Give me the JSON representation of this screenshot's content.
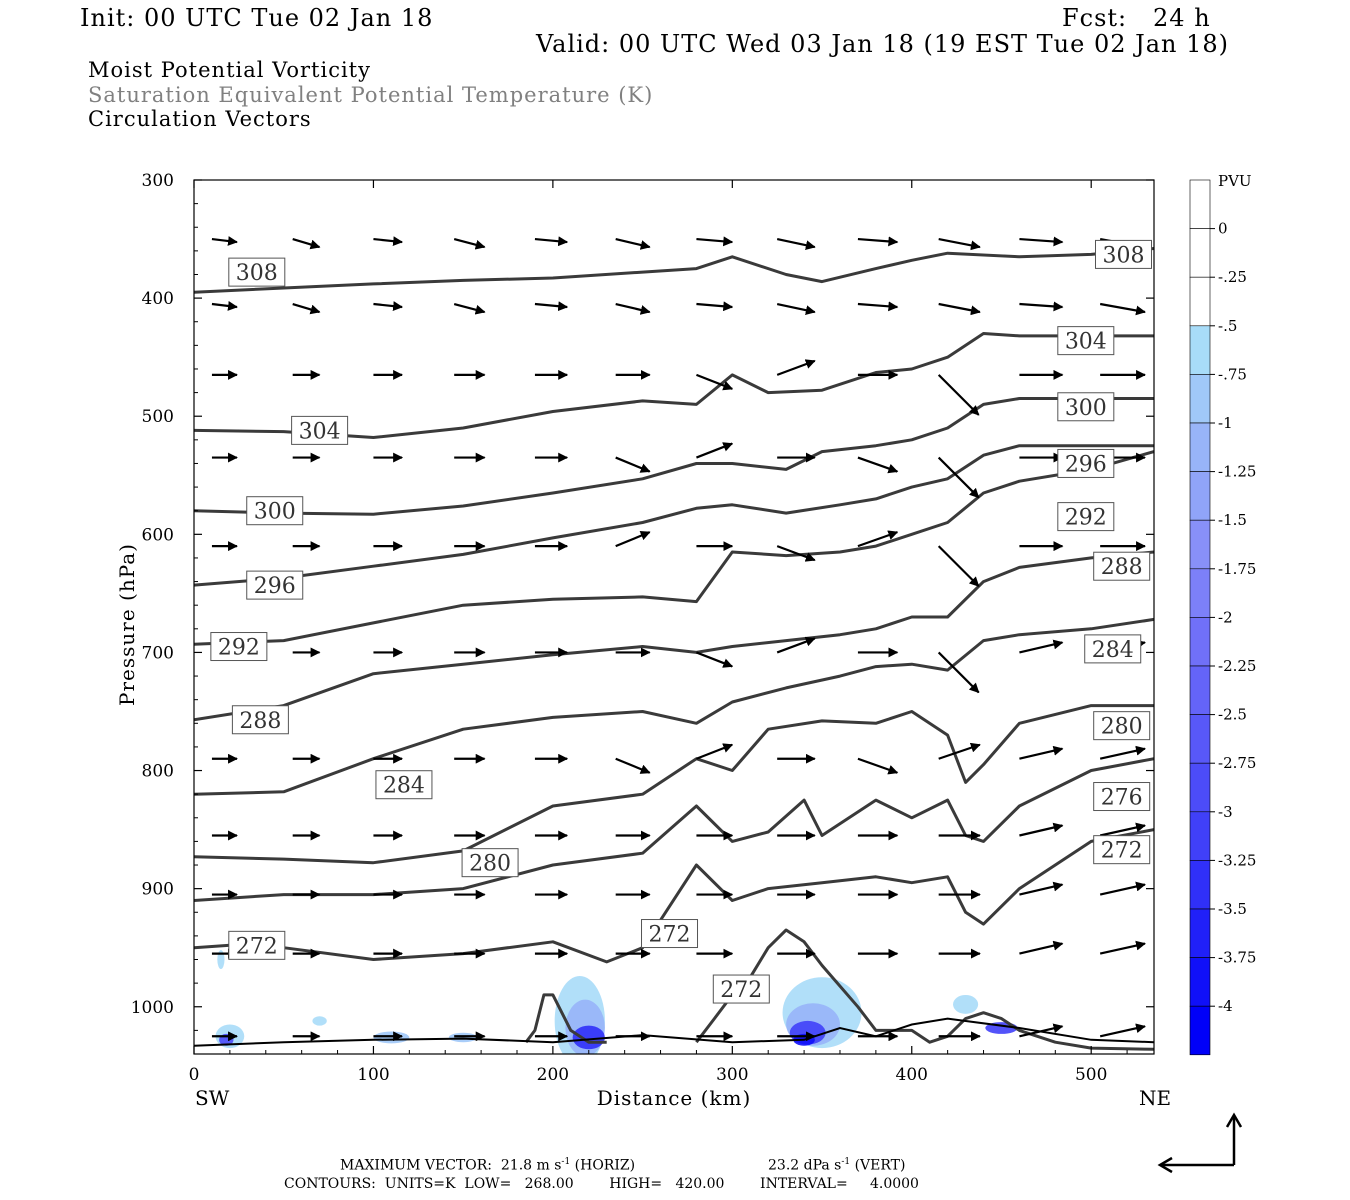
{
  "header": {
    "init": "Init: 00 UTC Tue 02 Jan 18",
    "fcst": "Fcst:   24 h",
    "valid": "Valid: 00 UTC Wed 03 Jan 18 (19 EST Tue 02 Jan 18)",
    "line1": "Moist Potential Vorticity",
    "line2": "Saturation Equivalent Potential Temperature (K)",
    "line3": "Circulation Vectors"
  },
  "axes": {
    "ylabel": "Pressure (hPa)",
    "xlabel": "Distance (km)",
    "left_end": "SW",
    "right_end": "NE"
  },
  "colorbar": {
    "unit": "PVU",
    "labels": [
      "0",
      "-.25",
      "-.5",
      "-.75",
      "-1",
      "-1.25",
      "-1.5",
      "-1.75",
      "-2",
      "-2.25",
      "-2.5",
      "-2.75",
      "-3",
      "-3.25",
      "-3.5",
      "-3.75",
      "-4"
    ],
    "colors": [
      "#ffffff",
      "#ffffff",
      "#a8dcf8",
      "#a0c8f8",
      "#98b4f8",
      "#90a4f8",
      "#8890f8",
      "#7c80f8",
      "#7070f8",
      "#6464f8",
      "#5858f8",
      "#4c4cf8",
      "#4040f8",
      "#3030f8",
      "#2020f8",
      "#1010f8",
      "#0000f8"
    ]
  },
  "footer": {
    "max_vector": "MAXIMUM VECTOR:  21.8 m s",
    "max_vector_exp": "-1",
    "horiz": " (HORIZ)",
    "vert_val": "23.2 dPa s",
    "vert_exp": "-1",
    "vert": " (VERT)",
    "contours": "CONTOURS:  UNITS=K  LOW=   268.00        HIGH=   420.00        INTERVAL=     4.0000"
  },
  "chart_data": {
    "type": "line",
    "title": "Moist Potential Vorticity / Saturation Equivalent Potential Temperature (K) / Circulation Vectors",
    "xlabel": "Distance (km)",
    "ylabel": "Pressure (hPa)",
    "xlim": [
      0,
      535
    ],
    "ylim": [
      300,
      1040
    ],
    "x_ticks": [
      0,
      100,
      200,
      300,
      400,
      500
    ],
    "y_ticks": [
      300,
      400,
      500,
      600,
      700,
      800,
      900,
      1000
    ],
    "series": [
      {
        "name": "308",
        "x": [
          0,
          100,
          150,
          200,
          250,
          280,
          300,
          330,
          350,
          380,
          400,
          420,
          460,
          500,
          535
        ],
        "y": [
          395,
          388,
          385,
          383,
          378,
          375,
          365,
          380,
          386,
          375,
          368,
          362,
          365,
          363,
          358
        ]
      },
      {
        "name": "304",
        "x": [
          0,
          50,
          100,
          150,
          200,
          250,
          280,
          300,
          320,
          350,
          380,
          400,
          420,
          440,
          460,
          500,
          535
        ],
        "y": [
          512,
          513,
          518,
          510,
          496,
          487,
          490,
          465,
          480,
          478,
          463,
          460,
          450,
          430,
          432,
          432,
          432
        ]
      },
      {
        "name": "300",
        "x": [
          0,
          50,
          100,
          150,
          200,
          250,
          280,
          300,
          330,
          350,
          380,
          400,
          420,
          440,
          460,
          500,
          535
        ],
        "y": [
          580,
          582,
          583,
          576,
          565,
          553,
          540,
          540,
          545,
          530,
          525,
          520,
          510,
          490,
          485,
          485,
          485
        ]
      },
      {
        "name": "296",
        "x": [
          0,
          50,
          100,
          150,
          200,
          250,
          280,
          300,
          330,
          360,
          380,
          400,
          420,
          440,
          460,
          500,
          535
        ],
        "y": [
          643,
          637,
          627,
          617,
          603,
          590,
          578,
          575,
          582,
          575,
          570,
          560,
          553,
          533,
          525,
          525,
          525
        ]
      },
      {
        "name": "292",
        "x": [
          0,
          50,
          100,
          150,
          200,
          250,
          280,
          300,
          330,
          360,
          380,
          400,
          420,
          440,
          460,
          500,
          535
        ],
        "y": [
          693,
          690,
          675,
          660,
          655,
          653,
          657,
          615,
          618,
          615,
          610,
          600,
          590,
          565,
          555,
          545,
          530
        ]
      },
      {
        "name": "288",
        "x": [
          0,
          50,
          100,
          150,
          200,
          250,
          280,
          300,
          330,
          360,
          380,
          400,
          420,
          440,
          460,
          500,
          535
        ],
        "y": [
          757,
          745,
          718,
          710,
          702,
          695,
          700,
          695,
          690,
          685,
          680,
          670,
          670,
          640,
          628,
          620,
          615
        ]
      },
      {
        "name": "284",
        "x": [
          0,
          50,
          100,
          150,
          200,
          250,
          280,
          300,
          330,
          360,
          380,
          400,
          420,
          440,
          460,
          500,
          535
        ],
        "y": [
          820,
          818,
          790,
          765,
          755,
          750,
          760,
          742,
          730,
          720,
          712,
          710,
          715,
          690,
          685,
          680,
          672
        ]
      },
      {
        "name": "280",
        "x": [
          0,
          50,
          100,
          150,
          200,
          250,
          280,
          300,
          320,
          350,
          380,
          400,
          420,
          430,
          440,
          460,
          500,
          535
        ],
        "y": [
          873,
          875,
          878,
          868,
          830,
          820,
          790,
          800,
          765,
          758,
          760,
          750,
          770,
          810,
          795,
          760,
          745,
          745
        ]
      },
      {
        "name": "276",
        "x": [
          0,
          50,
          100,
          150,
          200,
          250,
          280,
          300,
          320,
          340,
          350,
          380,
          400,
          420,
          430,
          440,
          460,
          500,
          535
        ],
        "y": [
          910,
          905,
          905,
          900,
          880,
          870,
          830,
          860,
          852,
          825,
          855,
          825,
          840,
          825,
          855,
          860,
          830,
          800,
          790
        ]
      },
      {
        "name": "272",
        "x": [
          0,
          20,
          50,
          100,
          150,
          200,
          230,
          250,
          280,
          300,
          320,
          350,
          380,
          400,
          420,
          430,
          440,
          460,
          500,
          535
        ],
        "y": [
          950,
          948,
          950,
          960,
          955,
          945,
          962,
          950,
          880,
          910,
          900,
          895,
          890,
          895,
          890,
          920,
          930,
          900,
          860,
          850
        ]
      },
      {
        "name": "272",
        "x": [
          185,
          190,
          195,
          200,
          210,
          220,
          230
        ],
        "y": [
          1030,
          1020,
          990,
          990,
          1020,
          1030,
          1030
        ]
      },
      {
        "name": "272",
        "x": [
          280,
          290,
          300,
          310,
          320,
          330,
          340,
          350,
          370,
          380,
          400,
          410,
          420,
          430,
          440,
          450,
          460,
          480,
          500,
          535
        ],
        "y": [
          1030,
          1010,
          990,
          975,
          950,
          935,
          945,
          965,
          1000,
          1020,
          1020,
          1030,
          1025,
          1010,
          1005,
          1010,
          1020,
          1030,
          1035,
          1036
        ]
      }
    ],
    "vector_columns_km": [
      10,
      55,
      100,
      145,
      190,
      235,
      280,
      325,
      370,
      415,
      460,
      505
    ],
    "vector_levels_hPa": [
      350,
      405,
      465,
      535,
      610,
      700,
      790,
      855,
      905,
      955,
      1025
    ],
    "shaded_field": "Moist potential vorticity (PVU), negative values shaded near the surface (about 200-240 km and 330-380 km, 950-1030 hPa)"
  }
}
